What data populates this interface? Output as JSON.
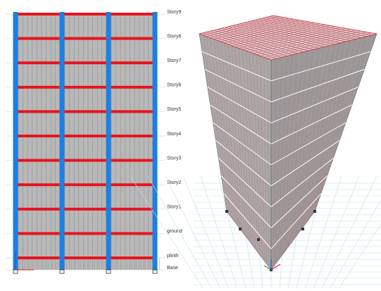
{
  "stories": [
    "Story9",
    "Story8",
    "Story7",
    "Story6",
    "Story5",
    "Story4",
    "Story3",
    "Story2",
    "Story1",
    "ground",
    "plinth",
    "Base"
  ]
}
